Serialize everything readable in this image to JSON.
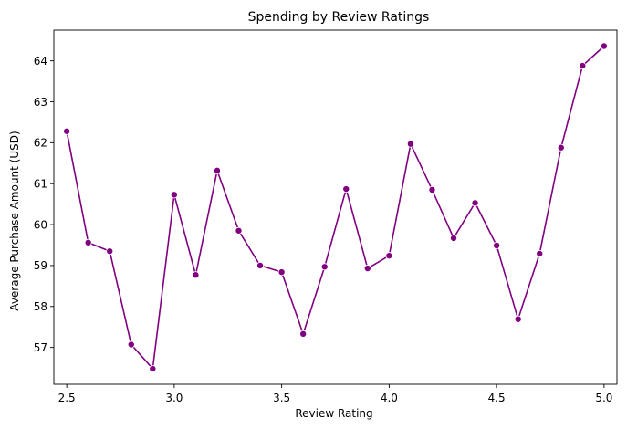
{
  "chart_data": {
    "type": "line",
    "title": "Spending by Review Ratings",
    "xlabel": "Review Rating",
    "ylabel": "Average Purchase Amount (USD)",
    "xlim": [
      2.44,
      5.06
    ],
    "ylim": [
      56.1,
      64.75
    ],
    "xticks": [
      2.5,
      3.0,
      3.5,
      4.0,
      4.5,
      5.0
    ],
    "xtick_labels": [
      "2.5",
      "3.0",
      "3.5",
      "4.0",
      "4.5",
      "5.0"
    ],
    "yticks": [
      57,
      58,
      59,
      60,
      61,
      62,
      63,
      64
    ],
    "ytick_labels": [
      "57",
      "58",
      "59",
      "60",
      "61",
      "62",
      "63",
      "64"
    ],
    "grid": false,
    "legend": "none",
    "series": [
      {
        "color": "#800080",
        "marker": "circle",
        "x": [
          2.5,
          2.6,
          2.7,
          2.8,
          2.9,
          3.0,
          3.1,
          3.2,
          3.3,
          3.4,
          3.5,
          3.6,
          3.7,
          3.8,
          3.9,
          4.0,
          4.1,
          4.2,
          4.3,
          4.4,
          4.5,
          4.6,
          4.7,
          4.8,
          4.9,
          5.0
        ],
        "y": [
          62.28,
          59.56,
          59.35,
          57.07,
          56.48,
          60.73,
          58.77,
          61.32,
          59.85,
          59.0,
          58.84,
          57.33,
          58.97,
          60.87,
          58.93,
          59.24,
          61.97,
          60.85,
          59.67,
          60.53,
          59.49,
          57.69,
          59.29,
          61.88,
          63.88,
          64.36
        ]
      }
    ]
  }
}
